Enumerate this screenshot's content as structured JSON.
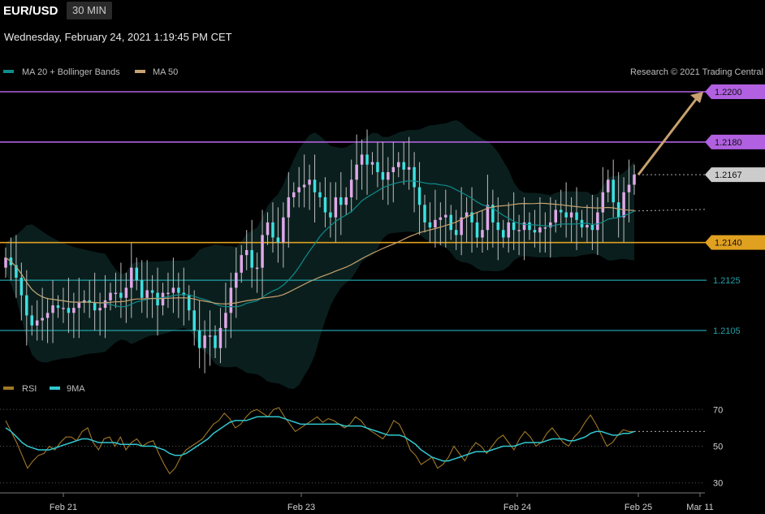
{
  "header": {
    "symbol": "EUR/USD",
    "interval": "30 MIN",
    "datetime": "Wednesday, February 24, 2021 1:19:45 PM CET"
  },
  "legend": {
    "ma20": "MA 20 + Bollinger Bands",
    "ma50": "MA 50",
    "copyright": "Research © 2021 Trading Central",
    "rsi": "RSI",
    "rsi_ma": "9MA"
  },
  "colors": {
    "ma20": "#0f8c8c",
    "ma50": "#c8a270",
    "candle_up": "#e0a8e8",
    "candle_down": "#3ee0e0",
    "band": "#0b2220",
    "resistance": "#b060e0",
    "pivot": "#e0a020",
    "support": "#20a0a8",
    "rsi": "#a07828",
    "rsi_ma": "#30c8d0",
    "target_arrow": "#c8a070"
  },
  "chart_data": [
    {
      "type": "candlestick",
      "title": "EUR/USD",
      "ylim": [
        1.2085,
        1.2215
      ],
      "x_labels": [
        "Feb 21",
        "Feb 23",
        "Feb 24",
        "Feb 25",
        "Mar 11"
      ],
      "levels": [
        {
          "label": "1.2200",
          "value": 1.22,
          "kind": "resistance"
        },
        {
          "label": "1.2180",
          "value": 1.218,
          "kind": "resistance"
        },
        {
          "label": "1.2167",
          "value": 1.2167,
          "kind": "last"
        },
        {
          "label": "1.2140",
          "value": 1.214,
          "kind": "pivot"
        },
        {
          "label": "1.2125",
          "value": 1.2125,
          "kind": "support"
        },
        {
          "label": "1.2105",
          "value": 1.2105,
          "kind": "support"
        }
      ],
      "target": {
        "from": 1.2167,
        "to": 1.22
      },
      "close": [
        1.2134,
        1.2131,
        1.2126,
        1.2119,
        1.2111,
        1.2107,
        1.2109,
        1.211,
        1.2112,
        1.2115,
        1.2114,
        1.2114,
        1.2112,
        1.2114,
        1.2116,
        1.2117,
        1.2116,
        1.2113,
        1.2114,
        1.2117,
        1.212,
        1.212,
        1.2118,
        1.2122,
        1.213,
        1.2125,
        1.2118,
        1.2121,
        1.212,
        1.2115,
        1.212,
        1.212,
        1.2122,
        1.212,
        1.2119,
        1.2113,
        1.2105,
        1.2098,
        1.2103,
        1.2103,
        1.2098,
        1.2106,
        1.2112,
        1.2122,
        1.2128,
        1.2135,
        1.2137,
        1.213,
        1.213,
        1.2143,
        1.2148,
        1.2142,
        1.214,
        1.215,
        1.2158,
        1.216,
        1.2162,
        1.2163,
        1.2165,
        1.216,
        1.2158,
        1.2152,
        1.215,
        1.2158,
        1.2155,
        1.2158,
        1.2165,
        1.2171,
        1.2175,
        1.2171,
        1.2172,
        1.2168,
        1.2165,
        1.2168,
        1.217,
        1.2172,
        1.2169,
        1.217,
        1.2162,
        1.2155,
        1.2148,
        1.2146,
        1.2149,
        1.215,
        1.2151,
        1.2145,
        1.2143,
        1.215,
        1.2152,
        1.2148,
        1.2142,
        1.2145,
        1.2155,
        1.2148,
        1.2145,
        1.2142,
        1.2148,
        1.2145,
        1.2145,
        1.2148,
        1.2145,
        1.2144,
        1.2146,
        1.2146,
        1.2148,
        1.2153,
        1.2152,
        1.215,
        1.2152,
        1.2149,
        1.2146,
        1.2147,
        1.2145,
        1.2152,
        1.216,
        1.2165,
        1.2156,
        1.215,
        1.216,
        1.2163,
        1.2167
      ]
    },
    {
      "type": "line",
      "title": "RSI",
      "ylim": [
        25,
        75
      ],
      "y_ticks": [
        "70",
        "50",
        "30"
      ],
      "series": [
        {
          "name": "RSI",
          "values": [
            64,
            58,
            52,
            45,
            38,
            42,
            45,
            46,
            50,
            48,
            52,
            55,
            55,
            53,
            58,
            60,
            52,
            48,
            54,
            55,
            50,
            55,
            48,
            52,
            54,
            50,
            52,
            53,
            46,
            40,
            35,
            38,
            44,
            48,
            50,
            52,
            54,
            58,
            62,
            64,
            68,
            65,
            60,
            62,
            66,
            69,
            70,
            68,
            66,
            70,
            71,
            66,
            62,
            58,
            60,
            62,
            64,
            66,
            63,
            65,
            64,
            62,
            60,
            62,
            66,
            64,
            60,
            58,
            56,
            54,
            58,
            64,
            62,
            56,
            48,
            45,
            40,
            42,
            44,
            38,
            40,
            44,
            50,
            46,
            42,
            48,
            52,
            50,
            46,
            50,
            54,
            56,
            52,
            48,
            54,
            58,
            55,
            50,
            52,
            57,
            60,
            56,
            52,
            50,
            55,
            58,
            63,
            67,
            62,
            56,
            50,
            52,
            56,
            59,
            58,
            58
          ]
        },
        {
          "name": "9MA",
          "values": [
            60,
            58,
            55,
            52,
            50,
            49,
            48,
            48,
            48,
            49,
            50,
            51,
            52,
            53,
            54,
            54,
            53,
            52,
            52,
            52,
            52,
            51,
            51,
            51,
            51,
            50,
            50,
            50,
            49,
            48,
            46,
            45,
            45,
            46,
            48,
            50,
            52,
            54,
            57,
            59,
            61,
            63,
            64,
            64,
            64,
            65,
            66,
            66,
            66,
            66,
            66,
            65,
            64,
            63,
            62,
            62,
            62,
            62,
            62,
            62,
            62,
            62,
            61,
            61,
            61,
            61,
            60,
            59,
            58,
            57,
            56,
            56,
            56,
            55,
            53,
            51,
            48,
            46,
            44,
            43,
            42,
            42,
            43,
            44,
            45,
            46,
            47,
            47,
            47,
            48,
            49,
            50,
            50,
            50,
            51,
            52,
            52,
            52,
            52,
            53,
            54,
            54,
            54,
            53,
            53,
            54,
            55,
            57,
            58,
            58,
            57,
            56,
            56,
            57,
            57,
            58
          ]
        }
      ]
    }
  ]
}
